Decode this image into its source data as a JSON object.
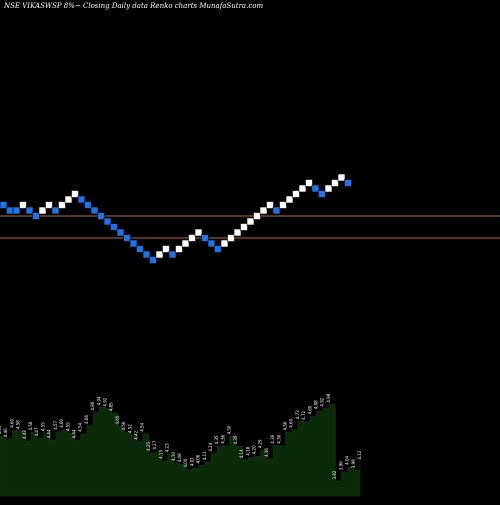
{
  "header": {
    "text": "NSE VIKASWSP 8%~  Closing Daily data  Renko  charts MunafaSutra.com"
  },
  "colors": {
    "background": "#000000",
    "bullish_brick": "#ffffff",
    "bearish_brick": "#1e73e6",
    "level_line": "#c0662e",
    "volume_fill": "#0a2a0a",
    "volume_line": "#000000",
    "label_text": "#ffffff"
  },
  "chart_data": {
    "type": "renko",
    "up_color": "#ffffff",
    "down_color": "#1e73e6",
    "bricks": [
      {
        "dir": "down",
        "level": 13
      },
      {
        "dir": "down",
        "level": 12
      },
      {
        "dir": "down",
        "level": 12
      },
      {
        "dir": "up",
        "level": 13
      },
      {
        "dir": "down",
        "level": 12
      },
      {
        "dir": "down",
        "level": 11
      },
      {
        "dir": "up",
        "level": 12
      },
      {
        "dir": "up",
        "level": 13
      },
      {
        "dir": "down",
        "level": 12
      },
      {
        "dir": "up",
        "level": 13
      },
      {
        "dir": "up",
        "level": 14
      },
      {
        "dir": "up",
        "level": 15
      },
      {
        "dir": "down",
        "level": 14
      },
      {
        "dir": "down",
        "level": 13
      },
      {
        "dir": "down",
        "level": 12
      },
      {
        "dir": "down",
        "level": 11
      },
      {
        "dir": "down",
        "level": 10
      },
      {
        "dir": "down",
        "level": 9
      },
      {
        "dir": "down",
        "level": 8
      },
      {
        "dir": "down",
        "level": 7
      },
      {
        "dir": "down",
        "level": 6
      },
      {
        "dir": "down",
        "level": 5
      },
      {
        "dir": "down",
        "level": 4
      },
      {
        "dir": "down",
        "level": 3
      },
      {
        "dir": "up",
        "level": 4
      },
      {
        "dir": "up",
        "level": 5
      },
      {
        "dir": "down",
        "level": 4
      },
      {
        "dir": "up",
        "level": 5
      },
      {
        "dir": "up",
        "level": 6
      },
      {
        "dir": "up",
        "level": 7
      },
      {
        "dir": "up",
        "level": 8
      },
      {
        "dir": "down",
        "level": 7
      },
      {
        "dir": "down",
        "level": 6
      },
      {
        "dir": "down",
        "level": 5
      },
      {
        "dir": "up",
        "level": 6
      },
      {
        "dir": "up",
        "level": 7
      },
      {
        "dir": "up",
        "level": 8
      },
      {
        "dir": "up",
        "level": 9
      },
      {
        "dir": "up",
        "level": 10
      },
      {
        "dir": "up",
        "level": 11
      },
      {
        "dir": "up",
        "level": 12
      },
      {
        "dir": "up",
        "level": 13
      },
      {
        "dir": "down",
        "level": 12
      },
      {
        "dir": "up",
        "level": 13
      },
      {
        "dir": "up",
        "level": 14
      },
      {
        "dir": "up",
        "level": 15
      },
      {
        "dir": "up",
        "level": 16
      },
      {
        "dir": "up",
        "level": 17
      },
      {
        "dir": "down",
        "level": 16
      },
      {
        "dir": "down",
        "level": 15
      },
      {
        "dir": "up",
        "level": 16
      },
      {
        "dir": "up",
        "level": 17
      },
      {
        "dir": "up",
        "level": 18
      },
      {
        "dir": "down",
        "level": 17
      }
    ],
    "level_lines": [
      11,
      7
    ],
    "volume": {
      "values": [
        4.5,
        4.46,
        4.6,
        4.58,
        4.43,
        4.56,
        4.47,
        4.55,
        4.44,
        4.57,
        4.6,
        4.55,
        4.44,
        4.54,
        4.66,
        4.86,
        4.94,
        4.92,
        4.85,
        4.65,
        4.56,
        4.52,
        4.42,
        4.54,
        4.25,
        4.27,
        4.13,
        4.23,
        4.1,
        4.08,
        4.0,
        4.02,
        4.06,
        4.11,
        4.24,
        4.35,
        4.36,
        4.5,
        4.35,
        4.14,
        4.18,
        4.2,
        4.29,
        4.16,
        4.36,
        4.36,
        4.56,
        4.6,
        4.73,
        4.72,
        4.8,
        4.88,
        4.92,
        4.98,
        3.82,
        3.96,
        4.04,
        3.99,
        4.12
      ],
      "labels": [
        "4.50",
        "4.46",
        "4.60",
        "4.58",
        "4.43",
        "4.56",
        "4.47",
        "4.55",
        "4.44",
        "4.57",
        "4.60",
        "4.55",
        "4.44",
        "4.54",
        "4.66",
        "4.86",
        "4.94",
        "4.92",
        "4.85",
        "4.65",
        "4.56",
        "4.52",
        "4.42",
        "4.54",
        "4.25",
        "4.27",
        "4.13",
        "4.23",
        "4.10",
        "4.08",
        "4.00",
        "4.02",
        "4.06",
        "4.11",
        "4.24",
        "4.35",
        "4.36",
        "4.50",
        "4.35",
        "4.14",
        "4.18",
        "4.20",
        "4.29",
        "4.16",
        "4.36",
        "4.36",
        "4.56",
        "4.60",
        "4.73",
        "4.72",
        "4.80",
        "4.88",
        "4.92",
        "4.98",
        "3.82",
        "3.96",
        "4.04",
        "3.99",
        "4.12"
      ]
    }
  }
}
